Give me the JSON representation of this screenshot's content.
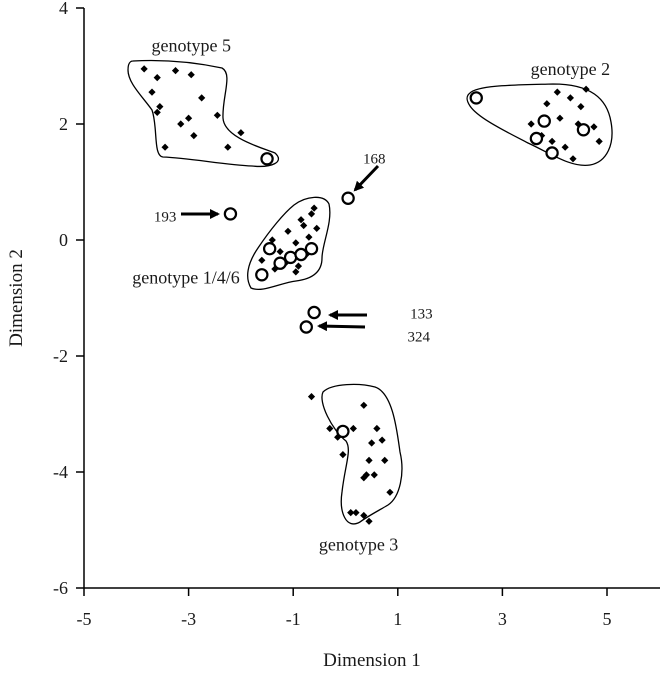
{
  "chart_data": {
    "type": "scatter",
    "title": "",
    "xlabel": "Dimension 1",
    "ylabel": "Dimension 2",
    "xlim": [
      -5,
      6
    ],
    "ylim": [
      -6,
      4
    ],
    "xticks": [
      -5,
      -3,
      -1,
      1,
      3,
      5
    ],
    "yticks": [
      4,
      2,
      0,
      -2,
      -4,
      -6
    ],
    "xtick_labels": [
      "-5",
      "-3",
      "-1",
      "1",
      "3",
      "5"
    ],
    "ytick_labels": [
      "4",
      "2",
      "0",
      "-2",
      "-4",
      "-6"
    ],
    "grid": false,
    "legend": "none",
    "series": [
      {
        "marker": "filled-diamond",
        "points": [
          [
            -3.85,
            2.95
          ],
          [
            -3.6,
            2.8
          ],
          [
            -3.25,
            2.92
          ],
          [
            -2.95,
            2.85
          ],
          [
            -3.7,
            2.55
          ],
          [
            -3.55,
            2.3
          ],
          [
            -3.15,
            2.0
          ],
          [
            -2.75,
            2.45
          ],
          [
            -2.45,
            2.15
          ],
          [
            -2.9,
            1.8
          ],
          [
            -2.25,
            1.6
          ],
          [
            -3.45,
            1.6
          ],
          [
            -2.0,
            1.85
          ],
          [
            -3.6,
            2.2
          ],
          [
            -3.0,
            2.1
          ],
          [
            3.55,
            2.0
          ],
          [
            3.85,
            2.35
          ],
          [
            4.05,
            2.55
          ],
          [
            4.3,
            2.45
          ],
          [
            4.5,
            2.3
          ],
          [
            4.45,
            2.0
          ],
          [
            4.75,
            1.95
          ],
          [
            4.85,
            1.7
          ],
          [
            4.2,
            1.6
          ],
          [
            3.95,
            1.7
          ],
          [
            4.35,
            1.4
          ],
          [
            3.75,
            1.8
          ],
          [
            4.6,
            2.6
          ],
          [
            4.1,
            2.1
          ],
          [
            -1.6,
            -0.35
          ],
          [
            -1.4,
            0.0
          ],
          [
            -1.25,
            -0.2
          ],
          [
            -1.1,
            0.15
          ],
          [
            -0.95,
            -0.05
          ],
          [
            -0.8,
            0.25
          ],
          [
            -0.65,
            0.45
          ],
          [
            -0.6,
            0.55
          ],
          [
            -0.9,
            -0.45
          ],
          [
            -0.95,
            -0.55
          ],
          [
            -1.15,
            -0.4
          ],
          [
            -0.75,
            -0.25
          ],
          [
            -0.7,
            0.05
          ],
          [
            -1.35,
            -0.5
          ],
          [
            -0.85,
            0.35
          ],
          [
            -0.55,
            0.2
          ],
          [
            -0.65,
            -2.7
          ],
          [
            -0.3,
            -3.25
          ],
          [
            -0.15,
            -3.4
          ],
          [
            -0.05,
            -3.7
          ],
          [
            0.15,
            -3.25
          ],
          [
            0.35,
            -2.85
          ],
          [
            0.5,
            -3.5
          ],
          [
            0.6,
            -3.25
          ],
          [
            0.7,
            -3.45
          ],
          [
            0.55,
            -4.05
          ],
          [
            0.75,
            -3.8
          ],
          [
            0.85,
            -4.35
          ],
          [
            0.45,
            -3.8
          ],
          [
            0.35,
            -4.1
          ],
          [
            0.2,
            -4.7
          ],
          [
            0.35,
            -4.75
          ],
          [
            0.45,
            -4.85
          ],
          [
            0.1,
            -4.7
          ],
          [
            0.4,
            -4.05
          ]
        ]
      },
      {
        "marker": "open-circle",
        "points": [
          [
            -1.5,
            1.4
          ],
          [
            2.5,
            2.45
          ],
          [
            3.8,
            2.05
          ],
          [
            3.65,
            1.75
          ],
          [
            3.95,
            1.5
          ],
          [
            4.55,
            1.9
          ],
          [
            -1.6,
            -0.6
          ],
          [
            -1.45,
            -0.15
          ],
          [
            -1.25,
            -0.4
          ],
          [
            -1.05,
            -0.3
          ],
          [
            -0.85,
            -0.25
          ],
          [
            -0.65,
            -0.15
          ],
          [
            -2.2,
            0.45
          ],
          [
            0.05,
            0.72
          ],
          [
            -0.6,
            -1.25
          ],
          [
            -0.75,
            -1.5
          ],
          [
            -0.05,
            -3.3
          ]
        ]
      }
    ],
    "annotations": [
      {
        "text": "genotype 5",
        "x": -2.95,
        "y": 3.35
      },
      {
        "text": "genotype 2",
        "x": 4.3,
        "y": 2.95
      },
      {
        "text": "genotype 1/4/6",
        "x": -3.05,
        "y": -0.65
      },
      {
        "text": "genotype 3",
        "x": 0.25,
        "y": -5.25
      },
      {
        "text": "193",
        "x": -3.45,
        "y": 0.42
      },
      {
        "text": "168",
        "x": 0.55,
        "y": 1.42
      },
      {
        "text": "133",
        "x": 1.45,
        "y": -1.25
      },
      {
        "text": "324",
        "x": 1.4,
        "y": -1.65
      }
    ]
  }
}
